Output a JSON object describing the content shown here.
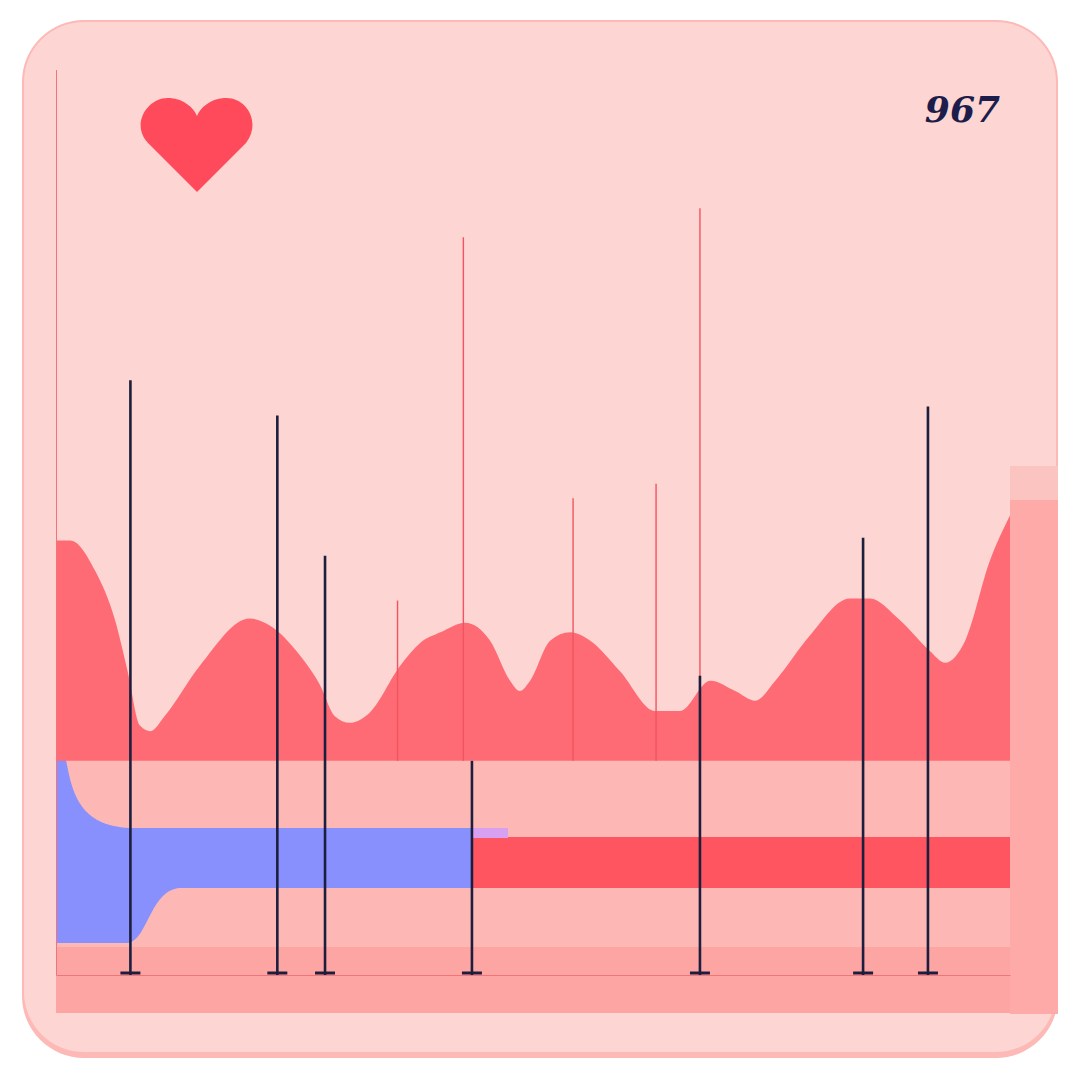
{
  "chart_data": {
    "type": "area",
    "annotations": [
      "967"
    ],
    "xlim": [
      0,
      100
    ],
    "ylim": [
      -31,
      100
    ],
    "tick_labels": false,
    "grid": false,
    "series": [
      {
        "type": "area",
        "color": "#fe6b74",
        "x": [
          0,
          1.5,
          4.1,
          6.2,
          7.5,
          8.8,
          9.9,
          11.4,
          15.1,
          20.3,
          22.4,
          25.6,
          27.7,
          29.2,
          30.8,
          32.9,
          36.1,
          38.2,
          40.3,
          42.9,
          45.5,
          47.6,
          48.6,
          49.7,
          51.8,
          53.9,
          56,
          59.1,
          62.8,
          65.4,
          68.6,
          71.2,
          73.3,
          75.4,
          79,
          83.2,
          85.3,
          88.5,
          91.6,
          93.2,
          95.3,
          97.9,
          100
        ],
        "values": [
          31.9,
          31.9,
          27.5,
          20.3,
          13,
          5.1,
          4.3,
          6.5,
          13.8,
          20.6,
          19.6,
          15.2,
          10.9,
          6.5,
          5.5,
          7,
          13.8,
          17.1,
          18.6,
          20,
          17.4,
          11.6,
          10.1,
          11.6,
          17.4,
          18.6,
          17.4,
          13,
          7.2,
          7.2,
          11.6,
          10.1,
          8.7,
          11.6,
          18.1,
          23.5,
          23.5,
          20.3,
          15.9,
          14.2,
          17.4,
          29,
          35.5
        ]
      },
      {
        "type": "spike",
        "color": "#f2545e",
        "x": [
          0,
          35.8,
          42.7,
          54.2,
          62.9,
          67.5
        ],
        "values": [
          100,
          23.2,
          75.8,
          38,
          40.1,
          80
        ]
      },
      {
        "type": "stem",
        "color": "#1b1f3d",
        "x": [
          7.8,
          23.2,
          28.2,
          43.6,
          67.5,
          84.6,
          91.4
        ],
        "values": [
          55.1,
          50,
          29.7,
          0,
          12.3,
          32.3,
          51.3
        ]
      }
    ]
  }
}
